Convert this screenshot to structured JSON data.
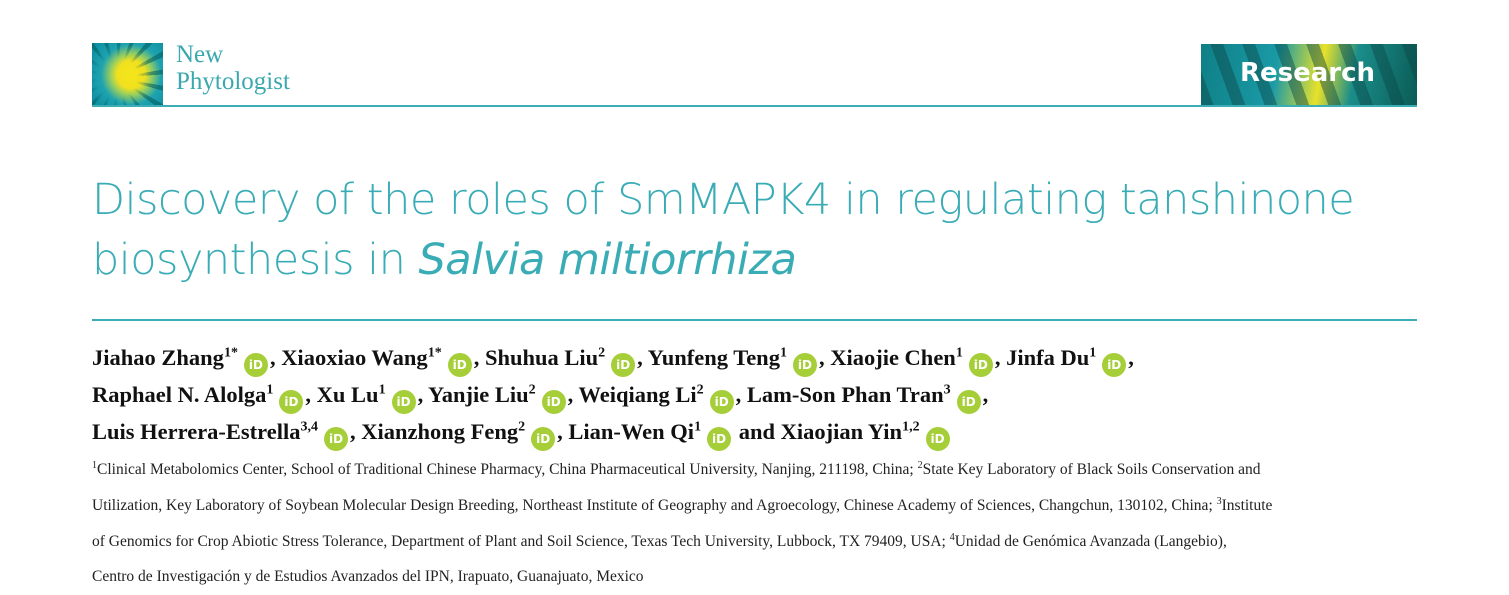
{
  "journal": {
    "name_line1": "New",
    "name_line2": "Phytologist",
    "section": "Research",
    "accent_color": "#3aacb5"
  },
  "title": {
    "main": "Discovery of the roles of SmMAPK4 in regulating tanshinone biosynthesis in ",
    "species": "Salvia miltiorrhiza"
  },
  "orcid_icon": "orcid-id-icon",
  "authors": [
    [
      {
        "name": "Jiahao Zhang",
        "sup": "1*",
        "after": ", "
      },
      {
        "name": "Xiaoxiao Wang",
        "sup": "1*",
        "after": ", "
      },
      {
        "name": "Shuhua Liu",
        "sup": "2",
        "after": ", "
      },
      {
        "name": "Yunfeng Teng",
        "sup": "1",
        "after": ", "
      },
      {
        "name": "Xiaojie Chen",
        "sup": "1",
        "after": ", "
      },
      {
        "name": "Jinfa Du",
        "sup": "1",
        "after": ","
      }
    ],
    [
      {
        "name": "Raphael N. Alolga",
        "sup": "1",
        "after": ", "
      },
      {
        "name": "Xu Lu",
        "sup": "1",
        "after": ", "
      },
      {
        "name": "Yanjie Liu",
        "sup": "2",
        "after": ", "
      },
      {
        "name": "Weiqiang Li",
        "sup": "2",
        "after": ", "
      },
      {
        "name": "Lam-Son Phan Tran",
        "sup": "3",
        "after": ","
      }
    ],
    [
      {
        "name": "Luis Herrera-Estrella",
        "sup": "3,4",
        "after": ", "
      },
      {
        "name": "Xianzhong Feng",
        "sup": "2",
        "after": ", "
      },
      {
        "name": "Lian-Wen Qi",
        "sup": "1",
        "after": " and "
      },
      {
        "name": "Xiaojian Yin",
        "sup": "1,2",
        "after": ""
      }
    ]
  ],
  "affiliations": [
    [
      {
        "sup": "1",
        "text": "Clinical Metabolomics Center, School of Traditional Chinese Pharmacy, China Pharmaceutical University, Nanjing, 211198, China; "
      },
      {
        "sup": "2",
        "text": "State Key Laboratory of Black Soils Conservation and"
      }
    ],
    [
      {
        "sup": "",
        "text": "Utilization, Key Laboratory of Soybean Molecular Design Breeding, Northeast Institute of Geography and Agroecology, Chinese Academy of Sciences, Changchun, 130102, China; "
      },
      {
        "sup": "3",
        "text": "Institute"
      }
    ],
    [
      {
        "sup": "",
        "text": "of Genomics for Crop Abiotic Stress Tolerance, Department of Plant and Soil Science, Texas Tech University, Lubbock, TX 79409, USA; "
      },
      {
        "sup": "4",
        "text": "Unidad de Genómica Avanzada (Langebio),"
      }
    ],
    [
      {
        "sup": "",
        "text": "Centro de Investigación y de Estudios Avanzados del IPN, Irapuato, Guanajuato, Mexico"
      }
    ]
  ]
}
